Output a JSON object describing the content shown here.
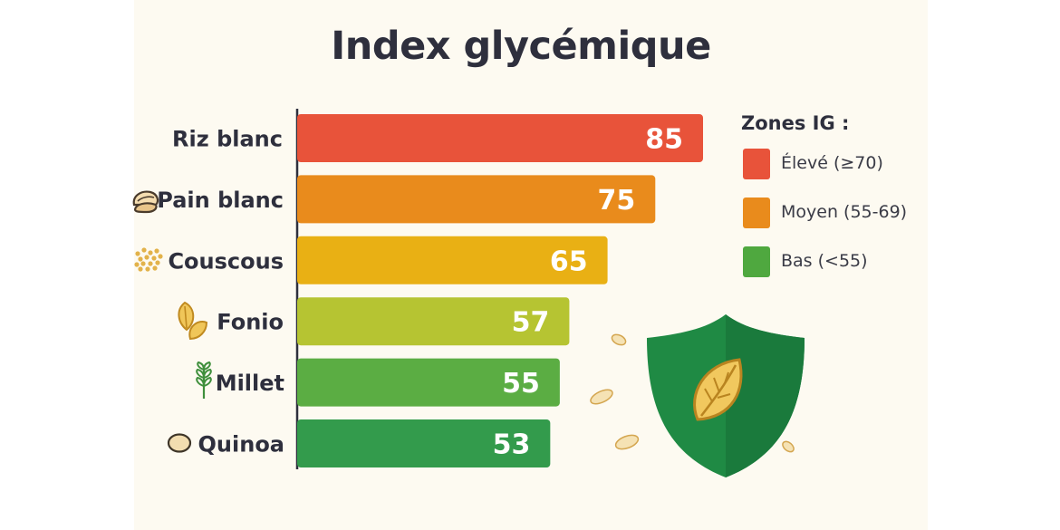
{
  "chart_data": {
    "type": "bar",
    "orientation": "horizontal",
    "title": "Index glycémique",
    "categories": [
      "Riz blanc",
      "Pain blanc",
      "Couscous",
      "Fonio",
      "Millet",
      "Quinoa"
    ],
    "values": [
      85,
      75,
      65,
      57,
      55,
      53
    ],
    "bar_colors": [
      "#e8533a",
      "#e98b1c",
      "#e9b014",
      "#b6c432",
      "#5bad43",
      "#339b4c"
    ],
    "category_icons": [
      null,
      "bread-icon",
      "couscous-grains-icon",
      "fonio-seed-icon",
      "millet-stalk-icon",
      "quinoa-seed-icon"
    ],
    "xlim": [
      0,
      100
    ],
    "grid": false,
    "xlabel": "",
    "ylabel": "",
    "legend": {
      "title": "Zones IG :",
      "position": "right",
      "items": [
        {
          "label": "Élevé (≥70)",
          "color": "#e8533a"
        },
        {
          "label": "Moyen (55-69)",
          "color": "#e98b1c"
        },
        {
          "label": "Bas (<55)",
          "color": "#4fa83f"
        }
      ]
    },
    "decoration": "shield-leaf-icon"
  }
}
